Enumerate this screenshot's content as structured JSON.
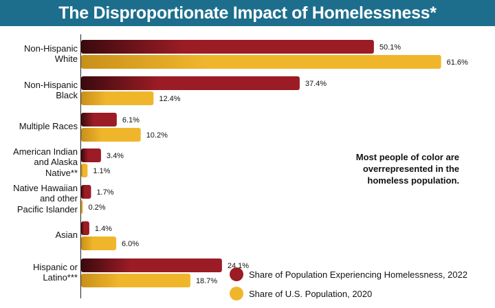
{
  "chart_data": {
    "type": "bar",
    "orientation": "horizontal",
    "title": "The Disproportionate Impact of Homelessness*",
    "categories": [
      "Non-Hispanic White",
      "Non-Hispanic Black",
      "Multiple Races",
      "American Indian and Alaska Native**",
      "Native Hawaiian and other Pacific Islander",
      "Asian",
      "Hispanic or Latino***"
    ],
    "series": [
      {
        "name": "Share of Population Experiencing Homelessness, 2022",
        "values": [
          50.1,
          37.4,
          6.1,
          3.4,
          1.7,
          1.4,
          24.1
        ],
        "labels": [
          "50.1%",
          "37.4%",
          "6.1%",
          "3.4%",
          "1.7%",
          "1.4%",
          "24.1%"
        ],
        "color": "#9b1c24",
        "color_dark": "#3a0a0e"
      },
      {
        "name": "Share of U.S. Population, 2020",
        "values": [
          61.6,
          12.4,
          10.2,
          1.1,
          0.2,
          6.0,
          18.7
        ],
        "labels": [
          "61.6%",
          "12.4%",
          "10.2%",
          "1.1%",
          "0.2%",
          "6.0%",
          "18.7%"
        ],
        "color": "#f0b62b",
        "color_dark": "#c9901a"
      }
    ],
    "xlim": [
      0,
      70
    ],
    "annotation": "Most people of color are overrepresented in the homeless population.",
    "legend_position": "bottom-right"
  },
  "colors": {
    "title_bg": "#1c6e8c"
  }
}
